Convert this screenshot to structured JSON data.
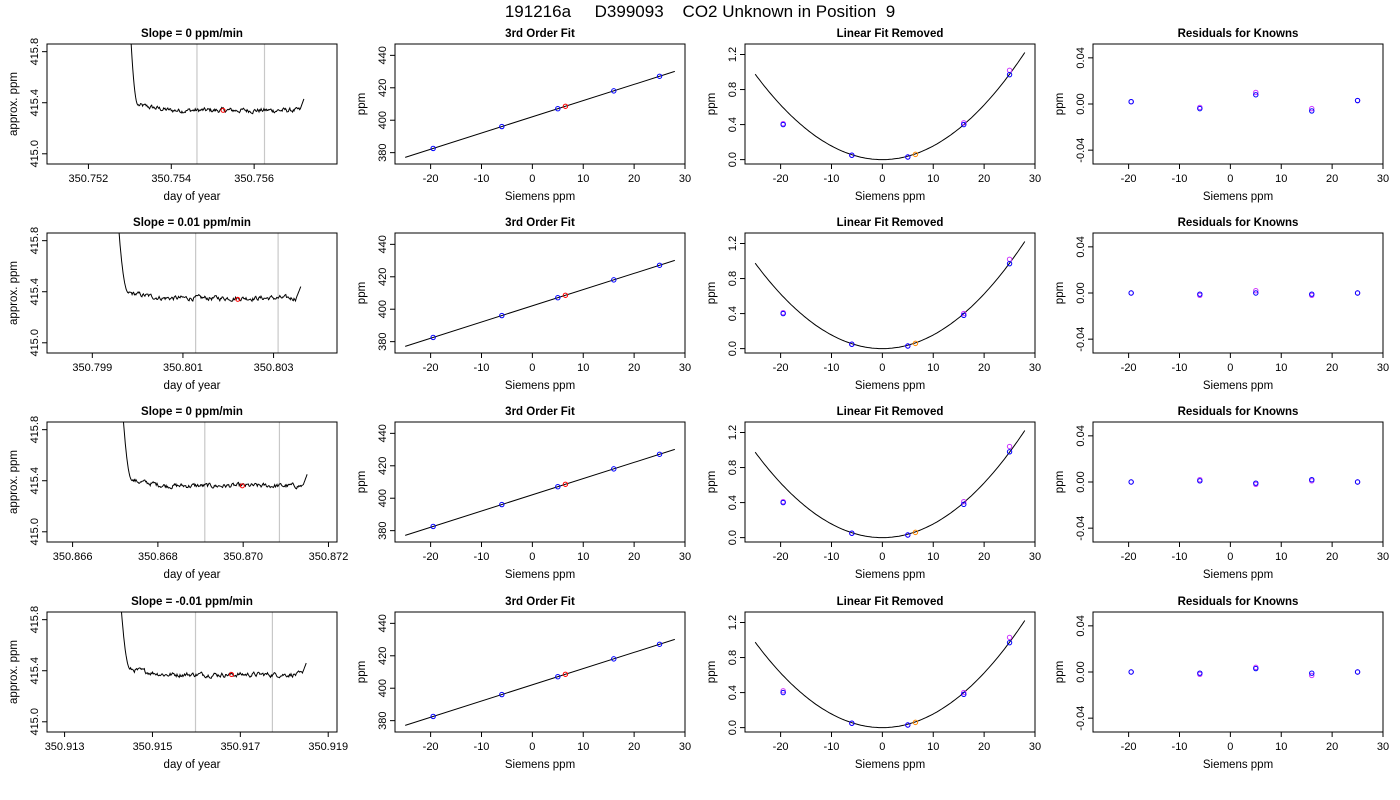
{
  "page_title": "191216a     D399093    CO2 Unknown in Position  9",
  "chart_data": [
    {
      "type": "line",
      "title": "Slope =  0  ppm/min",
      "xlabel": "day of year",
      "ylabel": "approx. ppm",
      "xlim": [
        350.751,
        350.758
      ],
      "ylim": [
        414.92,
        415.86
      ],
      "x_ticks": [
        "350.752",
        "350.754",
        "350.756"
      ],
      "y_ticks": [
        "415.0",
        "415.4",
        "415.8"
      ],
      "vlines": [
        350.75462,
        350.75625
      ],
      "trace": {
        "start": 350.7528,
        "end": 350.7572,
        "plateau": 415.34,
        "rise_at": 350.7532,
        "fall_at": 350.7571
      },
      "marker": {
        "x": 350.75525,
        "y": 415.34,
        "color": "#ff0000"
      }
    },
    {
      "type": "scatter",
      "title": "3rd Order Fit",
      "xlabel": "Siemens ppm",
      "ylabel": "ppm",
      "xlim": [
        -27,
        30
      ],
      "ylim": [
        373,
        447
      ],
      "x_ticks": [
        -20,
        -10,
        0,
        10,
        20,
        30
      ],
      "y_ticks": [
        380,
        400,
        420,
        440
      ],
      "line": {
        "slope": 1.0,
        "intercept": 402.1,
        "x_range": [
          -25,
          28
        ]
      },
      "knowns": {
        "x": [
          -19.5,
          -6,
          5,
          16,
          25
        ],
        "y": [
          382.6,
          396.1,
          407.1,
          418.1,
          427.1
        ],
        "color": "#0000ff"
      },
      "unknown": {
        "x": 6.5,
        "y": 408.6,
        "color": "#ff0000"
      }
    },
    {
      "type": "scatter",
      "title": "Linear Fit Removed",
      "xlabel": "Siemens ppm",
      "ylabel": "ppm",
      "xlim": [
        -27,
        30
      ],
      "ylim": [
        -0.05,
        1.32
      ],
      "x_ticks": [
        -20,
        -10,
        0,
        10,
        20,
        30
      ],
      "y_ticks": [
        "0.0",
        "0.4",
        "0.8",
        "1.2"
      ],
      "curve": {
        "a": 0.00156,
        "x_range": [
          -25,
          28
        ]
      },
      "knowns": {
        "x": [
          -19.5,
          -6,
          5,
          16,
          25
        ],
        "y": [
          0.4,
          0.05,
          0.03,
          0.4,
          0.97
        ],
        "color": "#0000ff"
      },
      "knowns_alt": {
        "x": [
          -19.5,
          -6,
          5,
          16,
          25
        ],
        "y": [
          0.41,
          0.05,
          0.03,
          0.42,
          1.02
        ],
        "color": "#cc33ff"
      },
      "unknown": {
        "x": 6.5,
        "y": 0.06,
        "color": "#ff8800"
      }
    },
    {
      "type": "scatter",
      "title": "Residuals for Knowns",
      "xlabel": "Siemens ppm",
      "ylabel": "ppm",
      "xlim": [
        -27,
        30
      ],
      "ylim": [
        -0.052,
        0.052
      ],
      "x_ticks": [
        -20,
        -10,
        0,
        10,
        20,
        30
      ],
      "y_ticks": [
        "-0.04",
        "0.00",
        "0.04"
      ],
      "knowns": {
        "x": [
          -19.5,
          -6,
          5,
          16,
          25
        ],
        "y": [
          0.002,
          -0.004,
          0.008,
          -0.006,
          0.003
        ],
        "color": "#0000ff"
      },
      "knowns_alt": {
        "x": [
          -19.5,
          -6,
          5,
          16,
          25
        ],
        "y": [
          0.002,
          -0.003,
          0.01,
          -0.004,
          0.003
        ],
        "color": "#cc33ff"
      }
    },
    {
      "type": "line",
      "title": "Slope =  0.01  ppm/min",
      "xlabel": "day of year",
      "ylabel": "approx. ppm",
      "xlim": [
        350.798,
        350.8044
      ],
      "ylim": [
        414.92,
        415.86
      ],
      "x_ticks": [
        "350.799",
        "350.801",
        "350.803"
      ],
      "y_ticks": [
        "415.0",
        "415.4",
        "415.8"
      ],
      "vlines": [
        350.80128,
        350.8031
      ],
      "trace": {
        "start": 350.7993,
        "end": 350.8036,
        "plateau": 415.35,
        "rise_at": 350.7998,
        "fall_at": 350.8035
      },
      "marker": {
        "x": 350.80221,
        "y": 415.34,
        "color": "#ff0000"
      }
    },
    {
      "type": "scatter",
      "title": "3rd Order Fit",
      "xlabel": "Siemens ppm",
      "ylabel": "ppm",
      "xlim": [
        -27,
        30
      ],
      "ylim": [
        373,
        447
      ],
      "x_ticks": [
        -20,
        -10,
        0,
        10,
        20,
        30
      ],
      "y_ticks": [
        380,
        400,
        420,
        440
      ],
      "line": {
        "slope": 1.0,
        "intercept": 402.1,
        "x_range": [
          -25,
          28
        ]
      },
      "knowns": {
        "x": [
          -19.5,
          -6,
          5,
          16,
          25
        ],
        "y": [
          382.6,
          396.1,
          407.1,
          418.1,
          427.1
        ],
        "color": "#0000ff"
      },
      "unknown": {
        "x": 6.5,
        "y": 408.6,
        "color": "#ff0000"
      }
    },
    {
      "type": "scatter",
      "title": "Linear Fit Removed",
      "xlabel": "Siemens ppm",
      "ylabel": "ppm",
      "xlim": [
        -27,
        30
      ],
      "ylim": [
        -0.05,
        1.32
      ],
      "x_ticks": [
        -20,
        -10,
        0,
        10,
        20,
        30
      ],
      "y_ticks": [
        "0.0",
        "0.4",
        "0.8",
        "1.2"
      ],
      "curve": {
        "a": 0.00156,
        "x_range": [
          -25,
          28
        ]
      },
      "knowns": {
        "x": [
          -19.5,
          -6,
          5,
          16,
          25
        ],
        "y": [
          0.4,
          0.05,
          0.03,
          0.38,
          0.97
        ],
        "color": "#0000ff"
      },
      "knowns_alt": {
        "x": [
          -19.5,
          -6,
          5,
          16,
          25
        ],
        "y": [
          0.41,
          0.05,
          0.03,
          0.4,
          1.02
        ],
        "color": "#cc33ff"
      },
      "unknown": {
        "x": 6.5,
        "y": 0.06,
        "color": "#ff8800"
      }
    },
    {
      "type": "scatter",
      "title": "Residuals for Knowns",
      "xlabel": "Siemens ppm",
      "ylabel": "ppm",
      "xlim": [
        -27,
        30
      ],
      "ylim": [
        -0.052,
        0.052
      ],
      "x_ticks": [
        -20,
        -10,
        0,
        10,
        20,
        30
      ],
      "y_ticks": [
        "-0.04",
        "0.00",
        "0.04"
      ],
      "knowns": {
        "x": [
          -19.5,
          -6,
          5,
          16,
          25
        ],
        "y": [
          0.0,
          -0.001,
          0.0,
          -0.001,
          0.0
        ],
        "color": "#0000ff"
      },
      "knowns_alt": {
        "x": [
          -19.5,
          -6,
          5,
          16,
          25
        ],
        "y": [
          0.0,
          -0.002,
          0.002,
          -0.002,
          0.0
        ],
        "color": "#cc33ff"
      }
    },
    {
      "type": "line",
      "title": "Slope =  0  ppm/min",
      "xlabel": "day of year",
      "ylabel": "approx. ppm",
      "xlim": [
        350.8654,
        350.8722
      ],
      "ylim": [
        414.92,
        415.86
      ],
      "x_ticks": [
        "350.866",
        "350.868",
        "350.870",
        "350.872"
      ],
      "y_ticks": [
        "415.0",
        "415.4",
        "415.8"
      ],
      "vlines": [
        350.8691,
        350.87085
      ],
      "trace": {
        "start": 350.8669,
        "end": 350.8715,
        "plateau": 415.36,
        "rise_at": 350.8674,
        "fall_at": 350.8714
      },
      "marker": {
        "x": 350.86998,
        "y": 415.36,
        "color": "#ff0000"
      }
    },
    {
      "type": "scatter",
      "title": "3rd Order Fit",
      "xlabel": "Siemens ppm",
      "ylabel": "ppm",
      "xlim": [
        -27,
        30
      ],
      "ylim": [
        373,
        447
      ],
      "x_ticks": [
        -20,
        -10,
        0,
        10,
        20,
        30
      ],
      "y_ticks": [
        380,
        400,
        420,
        440
      ],
      "line": {
        "slope": 1.0,
        "intercept": 402.1,
        "x_range": [
          -25,
          28
        ]
      },
      "knowns": {
        "x": [
          -19.5,
          -6,
          5,
          16,
          25
        ],
        "y": [
          382.6,
          396.1,
          407.1,
          418.1,
          427.1
        ],
        "color": "#0000ff"
      },
      "unknown": {
        "x": 6.5,
        "y": 408.6,
        "color": "#ff0000"
      }
    },
    {
      "type": "scatter",
      "title": "Linear Fit Removed",
      "xlabel": "Siemens ppm",
      "ylabel": "ppm",
      "xlim": [
        -27,
        30
      ],
      "ylim": [
        -0.05,
        1.32
      ],
      "x_ticks": [
        -20,
        -10,
        0,
        10,
        20,
        30
      ],
      "y_ticks": [
        "0.0",
        "0.4",
        "0.8",
        "1.2"
      ],
      "curve": {
        "a": 0.00156,
        "x_range": [
          -25,
          28
        ]
      },
      "knowns": {
        "x": [
          -19.5,
          -6,
          5,
          16,
          25
        ],
        "y": [
          0.4,
          0.05,
          0.03,
          0.38,
          0.98
        ],
        "color": "#0000ff"
      },
      "knowns_alt": {
        "x": [
          -19.5,
          -6,
          5,
          16,
          25
        ],
        "y": [
          0.41,
          0.05,
          0.03,
          0.41,
          1.04
        ],
        "color": "#cc33ff"
      },
      "unknown": {
        "x": 6.5,
        "y": 0.06,
        "color": "#ff8800"
      }
    },
    {
      "type": "scatter",
      "title": "Residuals for Knowns",
      "xlabel": "Siemens ppm",
      "ylabel": "ppm",
      "xlim": [
        -27,
        30
      ],
      "ylim": [
        -0.052,
        0.052
      ],
      "x_ticks": [
        -20,
        -10,
        0,
        10,
        20,
        30
      ],
      "y_ticks": [
        "-0.04",
        "0.00",
        "0.04"
      ],
      "knowns": {
        "x": [
          -19.5,
          -6,
          5,
          16,
          25
        ],
        "y": [
          0.0,
          0.001,
          -0.001,
          0.002,
          0.0
        ],
        "color": "#0000ff"
      },
      "knowns_alt": {
        "x": [
          -19.5,
          -6,
          5,
          16,
          25
        ],
        "y": [
          0.0,
          0.002,
          -0.002,
          0.001,
          0.0
        ],
        "color": "#cc33ff"
      }
    },
    {
      "type": "line",
      "title": "Slope =  -0.01  ppm/min",
      "xlabel": "day of year",
      "ylabel": "approx. ppm",
      "xlim": [
        350.9126,
        350.9192
      ],
      "ylim": [
        414.92,
        415.86
      ],
      "x_ticks": [
        "350.913",
        "350.915",
        "350.917",
        "350.919"
      ],
      "y_ticks": [
        "415.0",
        "415.4",
        "415.8"
      ],
      "vlines": [
        350.91598,
        350.91773
      ],
      "trace": {
        "start": 350.914,
        "end": 350.9185,
        "plateau": 415.37,
        "rise_at": 350.9145,
        "fall_at": 350.9184
      },
      "marker": {
        "x": 350.9168,
        "y": 415.37,
        "color": "#ff0000"
      }
    },
    {
      "type": "scatter",
      "title": "3rd Order Fit",
      "xlabel": "Siemens ppm",
      "ylabel": "ppm",
      "xlim": [
        -27,
        30
      ],
      "ylim": [
        373,
        447
      ],
      "x_ticks": [
        -20,
        -10,
        0,
        10,
        20,
        30
      ],
      "y_ticks": [
        380,
        400,
        420,
        440
      ],
      "line": {
        "slope": 1.0,
        "intercept": 402.1,
        "x_range": [
          -25,
          28
        ]
      },
      "knowns": {
        "x": [
          -19.5,
          -6,
          5,
          16,
          25
        ],
        "y": [
          382.6,
          396.1,
          407.1,
          418.1,
          427.1
        ],
        "color": "#0000ff"
      },
      "unknown": {
        "x": 6.5,
        "y": 408.6,
        "color": "#ff0000"
      }
    },
    {
      "type": "scatter",
      "title": "Linear Fit Removed",
      "xlabel": "Siemens ppm",
      "ylabel": "ppm",
      "xlim": [
        -27,
        30
      ],
      "ylim": [
        -0.05,
        1.32
      ],
      "x_ticks": [
        -20,
        -10,
        0,
        10,
        20,
        30
      ],
      "y_ticks": [
        "0.0",
        "0.4",
        "0.8",
        "1.2"
      ],
      "curve": {
        "a": 0.00156,
        "x_range": [
          -25,
          28
        ]
      },
      "knowns": {
        "x": [
          -19.5,
          -6,
          5,
          16,
          25
        ],
        "y": [
          0.4,
          0.05,
          0.03,
          0.38,
          0.97
        ],
        "color": "#0000ff"
      },
      "knowns_alt": {
        "x": [
          -19.5,
          -6,
          5,
          16,
          25
        ],
        "y": [
          0.42,
          0.05,
          0.03,
          0.4,
          1.03
        ],
        "color": "#cc33ff"
      },
      "unknown": {
        "x": 6.5,
        "y": 0.06,
        "color": "#ff8800"
      }
    },
    {
      "type": "scatter",
      "title": "Residuals for Knowns",
      "xlabel": "Siemens ppm",
      "ylabel": "ppm",
      "xlim": [
        -27,
        30
      ],
      "ylim": [
        -0.052,
        0.052
      ],
      "x_ticks": [
        -20,
        -10,
        0,
        10,
        20,
        30
      ],
      "y_ticks": [
        "-0.04",
        "0.00",
        "0.04"
      ],
      "knowns": {
        "x": [
          -19.5,
          -6,
          5,
          16,
          25
        ],
        "y": [
          0.0,
          -0.001,
          0.003,
          -0.001,
          0.0
        ],
        "color": "#0000ff"
      },
      "knowns_alt": {
        "x": [
          -19.5,
          -6,
          5,
          16,
          25
        ],
        "y": [
          0.0,
          -0.002,
          0.004,
          -0.003,
          0.0
        ],
        "color": "#cc33ff"
      }
    }
  ]
}
